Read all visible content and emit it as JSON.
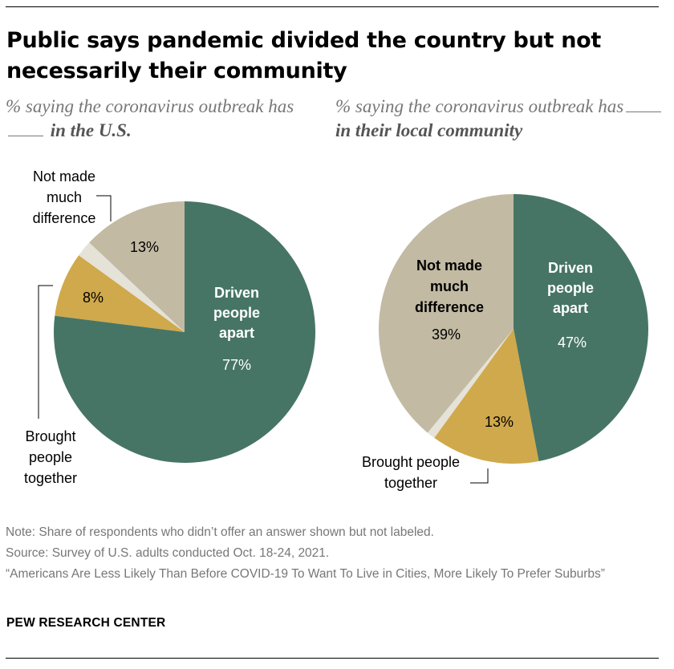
{
  "title": "Public says pandemic divided the country but not necessarily their community",
  "subtitles": {
    "left": {
      "prefix": "% saying the coronavirus outbreak has",
      "emphasis": "in the U.S."
    },
    "right": {
      "prefix": "% saying the coronavirus outbreak has",
      "emphasis": "in their local community"
    }
  },
  "colors": {
    "driven": "#477565",
    "brought": "#cfa94b",
    "no_answer": "#e5e2d8",
    "not_made": "#c2baa3"
  },
  "chart_data": [
    {
      "type": "pie",
      "title": "in the U.S.",
      "start_angle_deg": 0,
      "direction": "clockwise",
      "labels": [
        "Driven people apart",
        "Brought people together",
        "No answer",
        "Not made much difference"
      ],
      "values": [
        77,
        8,
        2,
        13
      ],
      "value_labels": [
        "77%",
        "8%",
        "",
        "13%"
      ]
    },
    {
      "type": "pie",
      "title": "in their local community",
      "start_angle_deg": 0,
      "direction": "clockwise",
      "labels": [
        "Driven people apart",
        "Brought people together",
        "No answer",
        "Not made much difference"
      ],
      "values": [
        47,
        13,
        1,
        39
      ],
      "value_labels": [
        "47%",
        "13%",
        "",
        "39%"
      ]
    }
  ],
  "notes": {
    "note": "Note: Share of respondents who didn’t offer an answer shown but not labeled.",
    "source": "Source: Survey of U.S. adults conducted Oct. 18-24, 2021.",
    "report": "“Americans Are Less Likely Than Before COVID-19 To Want To Live in Cities, More Likely To Prefer Suburbs”"
  },
  "brand": "PEW RESEARCH CENTER"
}
